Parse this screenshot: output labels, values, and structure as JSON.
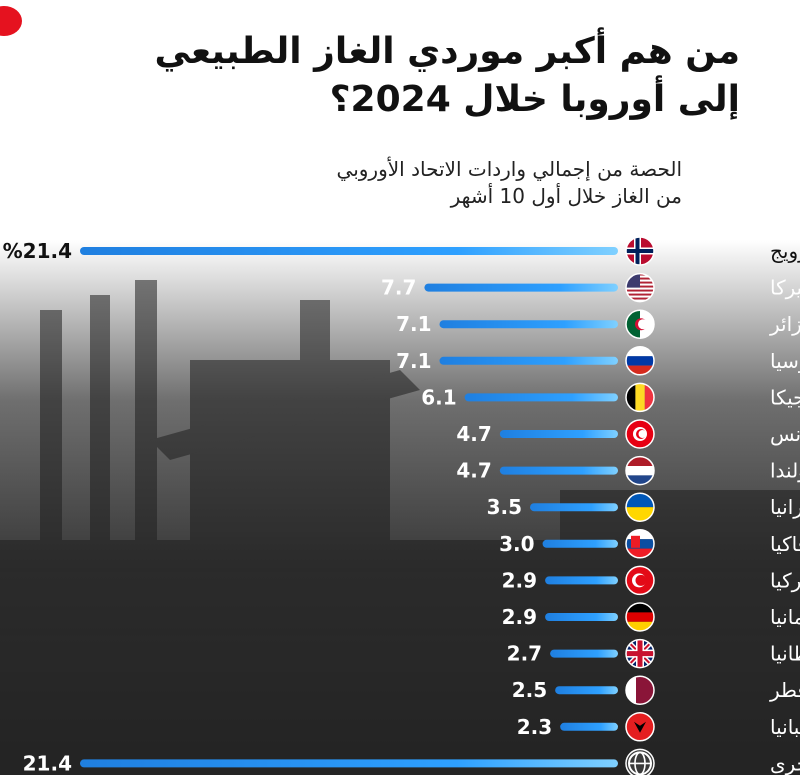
{
  "title_line1": "من هم أكبر موردي الغاز الطبيعي",
  "title_line2": "إلى أوروبا خلال 2024؟",
  "subtitle_line1": "الحصة من إجمالي واردات الاتحاد الأوروبي",
  "subtitle_line2": "من الغاز خلال أول 10 أشهر",
  "colors": {
    "bar": "#2196f3",
    "bar_light": "#6ec1ff",
    "accent": "#e5121f"
  },
  "chart_data": {
    "type": "bar",
    "orientation": "horizontal",
    "title": "من هم أكبر موردي الغاز الطبيعي إلى أوروبا خلال 2024؟",
    "subtitle": "الحصة من إجمالي واردات الاتحاد الأوروبي من الغاز خلال أول 10 أشهر",
    "unit": "%",
    "xlim": [
      0,
      21.4
    ],
    "categories": [
      "النرويج",
      "أميركا",
      "الجزائر",
      "روسيا",
      "بلجيكا",
      "تونس",
      "هولندا",
      "أوكرانيا",
      "سلوفاكيا",
      "تركيا",
      "ألمانيا",
      "بريطانيا",
      "قطر",
      "ألبانيا",
      "دول أخرى"
    ],
    "values": [
      21.4,
      7.7,
      7.1,
      7.1,
      6.1,
      4.7,
      4.7,
      3.5,
      3.0,
      2.9,
      2.9,
      2.7,
      2.5,
      2.3,
      21.4
    ],
    "value_labels": [
      "%21.4",
      "7.7",
      "7.1",
      "7.1",
      "6.1",
      "4.7",
      "4.7",
      "3.5",
      "3.0",
      "2.9",
      "2.9",
      "2.7",
      "2.5",
      "2.3",
      "21.4"
    ],
    "flags": [
      "norway-flag-icon",
      "usa-flag-icon",
      "algeria-flag-icon",
      "russia-flag-icon",
      "belgium-flag-icon",
      "tunisia-flag-icon",
      "netherlands-flag-icon",
      "ukraine-flag-icon",
      "slovakia-flag-icon",
      "turkey-flag-icon",
      "germany-flag-icon",
      "uk-flag-icon",
      "qatar-flag-icon",
      "albania-flag-icon",
      "globe-icon"
    ]
  }
}
